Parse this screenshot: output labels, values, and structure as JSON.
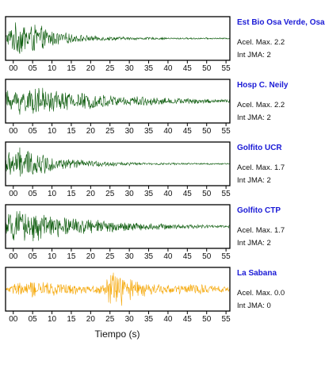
{
  "chart_data": {
    "type": "line",
    "xlabel": "Tiempo (s)",
    "x_ticks": [
      "00",
      "05",
      "10",
      "15",
      "20",
      "25",
      "30",
      "35",
      "40",
      "45",
      "50",
      "55"
    ],
    "xlim": [
      -2,
      56
    ],
    "stations": [
      {
        "name": "Est Bio Osa Verde, Osa",
        "acel_label": "Acel. Max. 2.2",
        "jma_label": "Int JMA: 2",
        "color": "#0a5a0a",
        "envelope": [
          [
            -2,
            0.3
          ],
          [
            0,
            0.8
          ],
          [
            3,
            0.95
          ],
          [
            6,
            0.75
          ],
          [
            10,
            0.45
          ],
          [
            15,
            0.25
          ],
          [
            20,
            0.15
          ],
          [
            30,
            0.08
          ],
          [
            40,
            0.05
          ],
          [
            56,
            0.04
          ]
        ]
      },
      {
        "name": "Hosp C. Neily",
        "acel_label": "Acel. Max. 2.2",
        "jma_label": "Int JMA: 2",
        "color": "#0a5a0a",
        "envelope": [
          [
            -2,
            0.55
          ],
          [
            2,
            0.75
          ],
          [
            8,
            0.7
          ],
          [
            14,
            0.55
          ],
          [
            20,
            0.4
          ],
          [
            30,
            0.28
          ],
          [
            40,
            0.18
          ],
          [
            56,
            0.1
          ]
        ]
      },
      {
        "name": "Golfito UCR",
        "acel_label": "Acel. Max. 1.7",
        "jma_label": "Int JMA: 2",
        "color": "#0a5a0a",
        "envelope": [
          [
            -2,
            0.6
          ],
          [
            1,
            0.9
          ],
          [
            5,
            0.7
          ],
          [
            10,
            0.4
          ],
          [
            15,
            0.25
          ],
          [
            25,
            0.12
          ],
          [
            35,
            0.06
          ],
          [
            56,
            0.04
          ]
        ]
      },
      {
        "name": "Golfito CTP",
        "acel_label": "Acel. Max. 1.7",
        "jma_label": "Int JMA: 2",
        "color": "#0a5a0a",
        "envelope": [
          [
            -2,
            0.65
          ],
          [
            2,
            0.85
          ],
          [
            8,
            0.7
          ],
          [
            15,
            0.5
          ],
          [
            25,
            0.3
          ],
          [
            35,
            0.18
          ],
          [
            45,
            0.12
          ],
          [
            56,
            0.08
          ]
        ]
      },
      {
        "name": "La Sabana",
        "acel_label": "Acel. Max. 0.0",
        "jma_label": "Int JMA: 0",
        "color": "#f5a500",
        "envelope": [
          [
            -2,
            0.1
          ],
          [
            0,
            0.3
          ],
          [
            5,
            0.45
          ],
          [
            10,
            0.4
          ],
          [
            15,
            0.3
          ],
          [
            20,
            0.2
          ],
          [
            23,
            0.35
          ],
          [
            25,
            0.95
          ],
          [
            28,
            0.85
          ],
          [
            31,
            0.5
          ],
          [
            36,
            0.3
          ],
          [
            42,
            0.25
          ],
          [
            48,
            0.3
          ],
          [
            52,
            0.2
          ],
          [
            56,
            0.12
          ]
        ]
      }
    ]
  }
}
